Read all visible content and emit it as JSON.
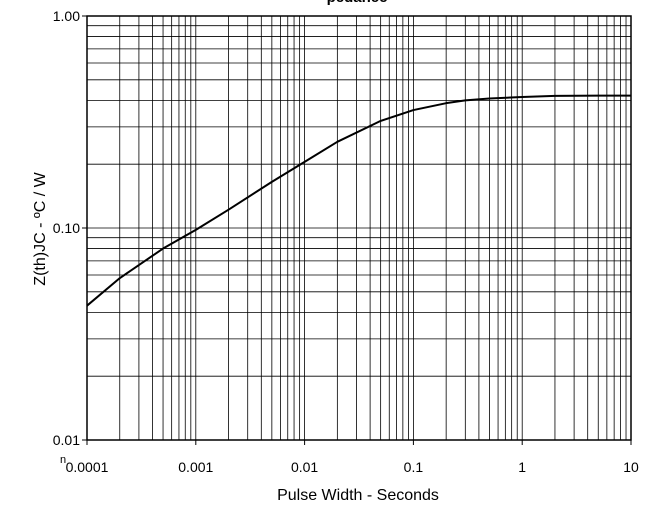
{
  "chart_data": {
    "type": "line",
    "title": "pedance",
    "xlabel": "Pulse Width - Seconds",
    "ylabel": "Z(th)JC - ºC / W",
    "x_scale": "log",
    "y_scale": "log",
    "xlim": [
      0.0001,
      10
    ],
    "ylim": [
      0.01,
      1
    ],
    "grid": true,
    "x_ticks": [
      "0.0001",
      "0.001",
      "0.01",
      "0.1",
      "1",
      "10"
    ],
    "y_ticks": [
      "0.01",
      "0.10",
      "1.00"
    ],
    "series": [
      {
        "color": "#000000",
        "x": [
          0.0001,
          0.0002,
          0.0005,
          0.001,
          0.002,
          0.005,
          0.01,
          0.02,
          0.05,
          0.1,
          0.2,
          0.3,
          0.5,
          1,
          2,
          5,
          10
        ],
        "y": [
          0.043,
          0.058,
          0.08,
          0.098,
          0.122,
          0.165,
          0.205,
          0.255,
          0.32,
          0.36,
          0.388,
          0.4,
          0.408,
          0.415,
          0.42,
          0.421,
          0.421
        ]
      }
    ]
  },
  "stray_text": [
    "n"
  ]
}
